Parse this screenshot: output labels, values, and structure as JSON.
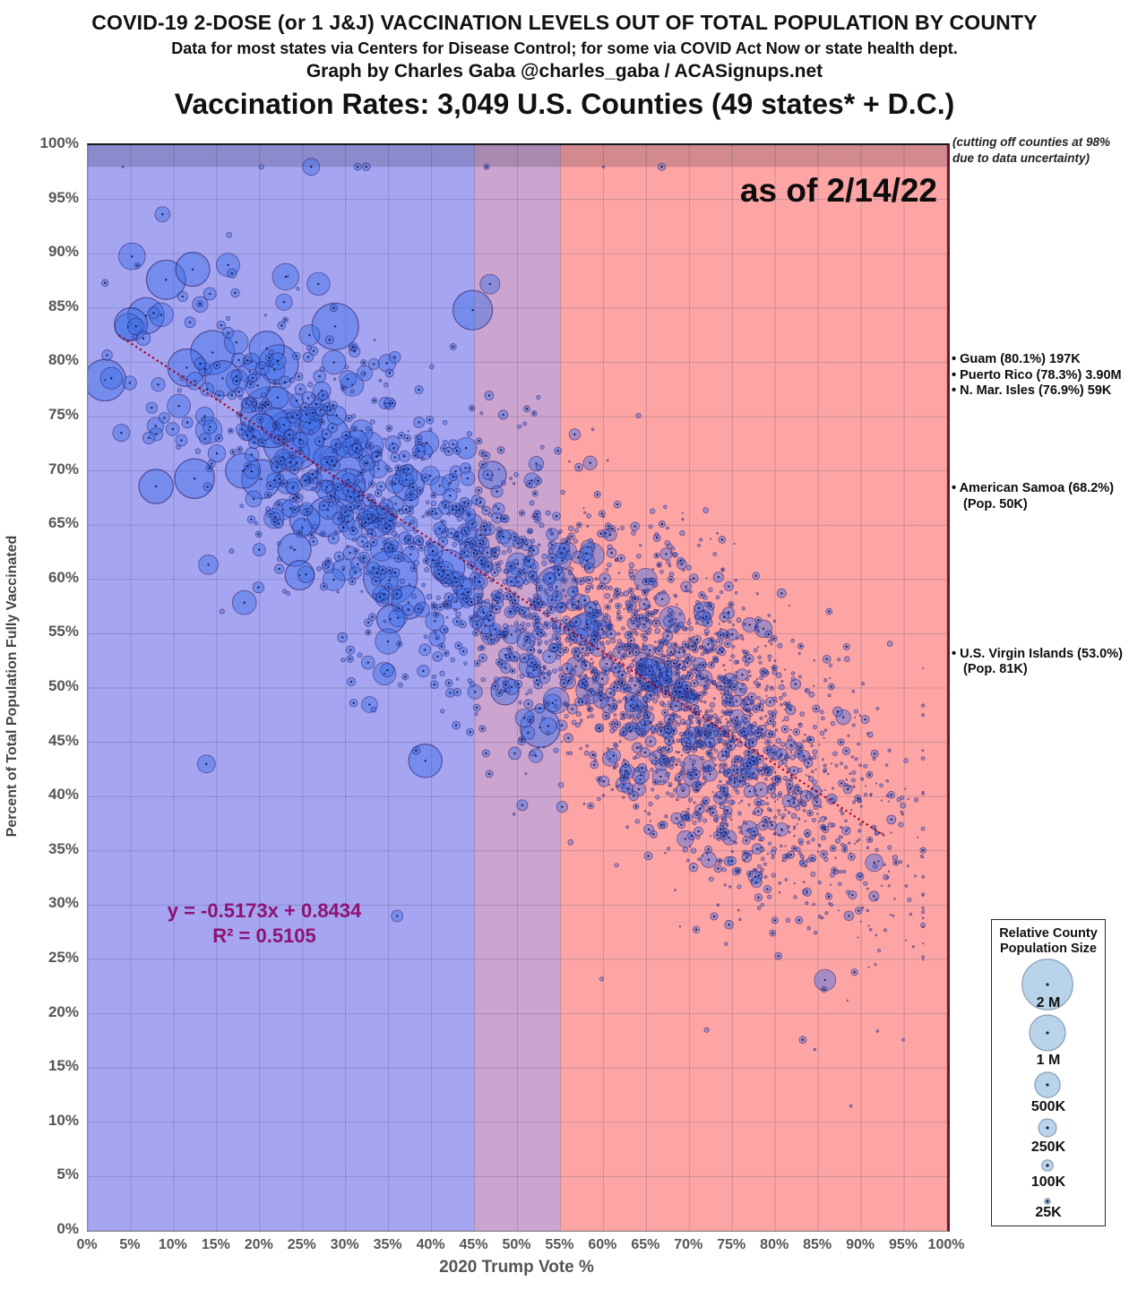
{
  "header": {
    "line1": "COVID-19 2-DOSE (or 1 J&J) VACCINATION LEVELS OUT OF TOTAL POPULATION BY COUNTY",
    "line2": "Data for most states via Centers for Disease Control; for some via COVID Act Now or state health dept.",
    "line3": "Graph by Charles Gaba @charles_gaba / ACASignups.net",
    "line4": "Vaccination Rates: 3,049 U.S. Counties (49 states* + D.C.)"
  },
  "chart_data": {
    "type": "bubble",
    "title": "Vaccination Rates: 3,049 U.S. Counties (49 states* + D.C.)",
    "as_of": "as of 2/14/22",
    "cutoff_note_line1": "(cutting off counties at 98%",
    "cutoff_note_line2": "due to data uncertainty)",
    "xlabel": "2020 Trump Vote %",
    "ylabel": "Percent of Total Population Fully Vaccinated",
    "x_range_pct": [
      0,
      100
    ],
    "y_range_pct": [
      0,
      100
    ],
    "x_ticks": [
      "0%",
      "5%",
      "10%",
      "15%",
      "20%",
      "25%",
      "30%",
      "35%",
      "40%",
      "45%",
      "50%",
      "55%",
      "60%",
      "65%",
      "70%",
      "75%",
      "80%",
      "85%",
      "90%",
      "95%",
      "100%"
    ],
    "y_ticks_top_to_bottom": [
      "100%",
      "95%",
      "90%",
      "85%",
      "80%",
      "75%",
      "70%",
      "65%",
      "60%",
      "55%",
      "50%",
      "45%",
      "40%",
      "35%",
      "30%",
      "25%",
      "20%",
      "15%",
      "10%",
      "5%",
      "0%"
    ],
    "grid": {
      "step_pct": 5,
      "color": "rgba(85,80,120,0.28)"
    },
    "zones": [
      {
        "name": "biden-blue",
        "x0_pct": 0,
        "x1_pct": 45,
        "color": "#a5a5f2"
      },
      {
        "name": "overlap-purple",
        "x0_pct": 45,
        "x1_pct": 55,
        "color": "#cba4cf"
      },
      {
        "name": "trump-red",
        "x0_pct": 55,
        "x1_pct": 100,
        "color": "#fda5a5"
      }
    ],
    "cutoff_band": {
      "y_pct": 98,
      "overlay_color": "rgba(15,15,35,0.18)"
    },
    "trendline": {
      "slope": -0.5173,
      "intercept": 0.8434,
      "r2": 0.5105,
      "x_start": 0.036,
      "x_end": 0.927,
      "color": "#a50021",
      "label_line1": "y = -0.5173x + 0.8434",
      "label_line2": "R² = 0.5105"
    },
    "bubble_style": {
      "fill": "rgba(60,110,230,0.45)",
      "stroke": "rgba(35,15,85,0.55)",
      "center_dot": "rgba(15,15,50,0.9)"
    },
    "size_rule": "radius_px = 0.02 * sqrt(county_population)",
    "points_spec": {
      "count": 3049,
      "seed": 20220214,
      "x_mixture": [
        {
          "w": 0.16,
          "mu": 0.27,
          "sd": 0.105
        },
        {
          "w": 0.29,
          "mu": 0.52,
          "sd": 0.13
        },
        {
          "w": 0.55,
          "mu": 0.735,
          "sd": 0.105
        }
      ],
      "x_clip": [
        0.02,
        0.972
      ],
      "y_noise_sd": 0.068,
      "y_clip": [
        0.105,
        0.98
      ],
      "pop_log": {
        "base": 10.0,
        "x_coef": 3.6,
        "x_ref": 0.55,
        "sd": 1.35
      },
      "pop_clip": [
        1100,
        2900000
      ],
      "radius_scale": 0.02
    },
    "extra_points": [
      {
        "x": 4.1,
        "y": 98,
        "r": 1.1
      },
      {
        "x": 20.2,
        "y": 98,
        "r": 2.6
      },
      {
        "x": 26.0,
        "y": 98,
        "r": 9.5
      },
      {
        "x": 31.4,
        "y": 98,
        "r": 4.0
      },
      {
        "x": 32.4,
        "y": 98,
        "r": 4.4
      },
      {
        "x": 46.4,
        "y": 98,
        "r": 3.0
      },
      {
        "x": 60.0,
        "y": 98,
        "r": 1.3
      },
      {
        "x": 66.8,
        "y": 98,
        "r": 4.2
      },
      {
        "x": 83.2,
        "y": 17.6,
        "r": 4.0
      },
      {
        "x": 84.6,
        "y": 16.7,
        "r": 1.3
      },
      {
        "x": 91.9,
        "y": 18.4,
        "r": 1.4
      },
      {
        "x": 94.9,
        "y": 17.6,
        "r": 1.4
      },
      {
        "x": 88.8,
        "y": 11.5,
        "r": 1.4
      },
      {
        "x": 95.6,
        "y": 30.5,
        "r": 2.2
      },
      {
        "x": 72.0,
        "y": 18.5,
        "r": 2.6
      },
      {
        "x": 59.8,
        "y": 23.2,
        "r": 2.2
      },
      {
        "x": 36.0,
        "y": 29.0,
        "r": 6.5
      },
      {
        "x": 13.8,
        "y": 43.0,
        "r": 10
      },
      {
        "x": 3.9,
        "y": 73.5,
        "r": 9.5
      },
      {
        "x": 14.2,
        "y": 86.3,
        "r": 7
      },
      {
        "x": 28.8,
        "y": 83.3,
        "r": 26
      },
      {
        "x": 22.2,
        "y": 79.8,
        "r": 22
      },
      {
        "x": 11.5,
        "y": 79.5,
        "r": 21
      },
      {
        "x": 35.2,
        "y": 60.2,
        "r": 30
      },
      {
        "x": 30.0,
        "y": 70.0,
        "r": 32
      },
      {
        "x": 44.8,
        "y": 84.8,
        "r": 22
      },
      {
        "x": 46.8,
        "y": 87.2,
        "r": 11
      }
    ],
    "territory_annotations": [
      {
        "anchor_pct": 80.1,
        "lines": [
          "• Guam (80.1%) 197K",
          "• Puerto Rico (78.3%) 3.90M",
          "• N. Mar. Isles (76.9%) 59K"
        ]
      },
      {
        "anchor_pct": 68.2,
        "lines": [
          "• American Samoa (68.2%)",
          "(Pop. 50K)"
        ]
      },
      {
        "anchor_pct": 53.0,
        "lines": [
          "• U.S. Virgin Islands (53.0%)",
          "(Pop. 81K)"
        ]
      }
    ],
    "legend": {
      "title_line1": "Relative County",
      "title_line2": "Population Size",
      "bubble_fill": "#b9d3ea",
      "bubble_stroke": "#7c8fa6",
      "entries": [
        {
          "label": "2 M",
          "pop": 2000000
        },
        {
          "label": "1 M",
          "pop": 1000000
        },
        {
          "label": "500K",
          "pop": 500000
        },
        {
          "label": "250K",
          "pop": 250000
        },
        {
          "label": "100K",
          "pop": 100000
        },
        {
          "label": "25K",
          "pop": 25000
        }
      ]
    }
  }
}
